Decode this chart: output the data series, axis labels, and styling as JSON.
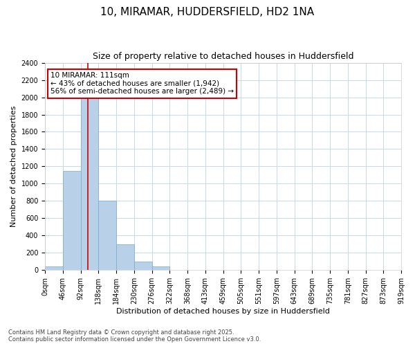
{
  "title": "10, MIRAMAR, HUDDERSFIELD, HD2 1NA",
  "subtitle": "Size of property relative to detached houses in Huddersfield",
  "xlabel": "Distribution of detached houses by size in Huddersfield",
  "ylabel": "Number of detached properties",
  "bin_labels": [
    "0sqm",
    "46sqm",
    "92sqm",
    "138sqm",
    "184sqm",
    "230sqm",
    "276sqm",
    "322sqm",
    "368sqm",
    "413sqm",
    "459sqm",
    "505sqm",
    "551sqm",
    "597sqm",
    "643sqm",
    "689sqm",
    "735sqm",
    "781sqm",
    "827sqm",
    "873sqm",
    "919sqm"
  ],
  "bar_heights": [
    40,
    1150,
    2020,
    800,
    300,
    100,
    40,
    0,
    0,
    0,
    0,
    0,
    0,
    0,
    0,
    0,
    0,
    0,
    0,
    0
  ],
  "bar_color": "#b8d0e8",
  "bar_edgecolor": "#7aaac8",
  "grid_color": "#c8d8e8",
  "plot_bg_color": "#ffffff",
  "fig_bg_color": "#ffffff",
  "vline_color": "#cc0000",
  "vline_x": 2.41,
  "annotation_text": "10 MIRAMAR: 111sqm\n← 43% of detached houses are smaller (1,942)\n56% of semi-detached houses are larger (2,489) →",
  "annotation_box_edgecolor": "#cc0000",
  "annotation_box_facecolor": "#ffffff",
  "ylim": [
    0,
    2400
  ],
  "yticks": [
    0,
    200,
    400,
    600,
    800,
    1000,
    1200,
    1400,
    1600,
    1800,
    2000,
    2200,
    2400
  ],
  "footer_text": "Contains HM Land Registry data © Crown copyright and database right 2025.\nContains public sector information licensed under the Open Government Licence v3.0.",
  "title_fontsize": 11,
  "subtitle_fontsize": 9,
  "tick_fontsize": 7,
  "ylabel_fontsize": 8,
  "xlabel_fontsize": 8,
  "footer_fontsize": 6,
  "annotation_fontsize": 7.5
}
